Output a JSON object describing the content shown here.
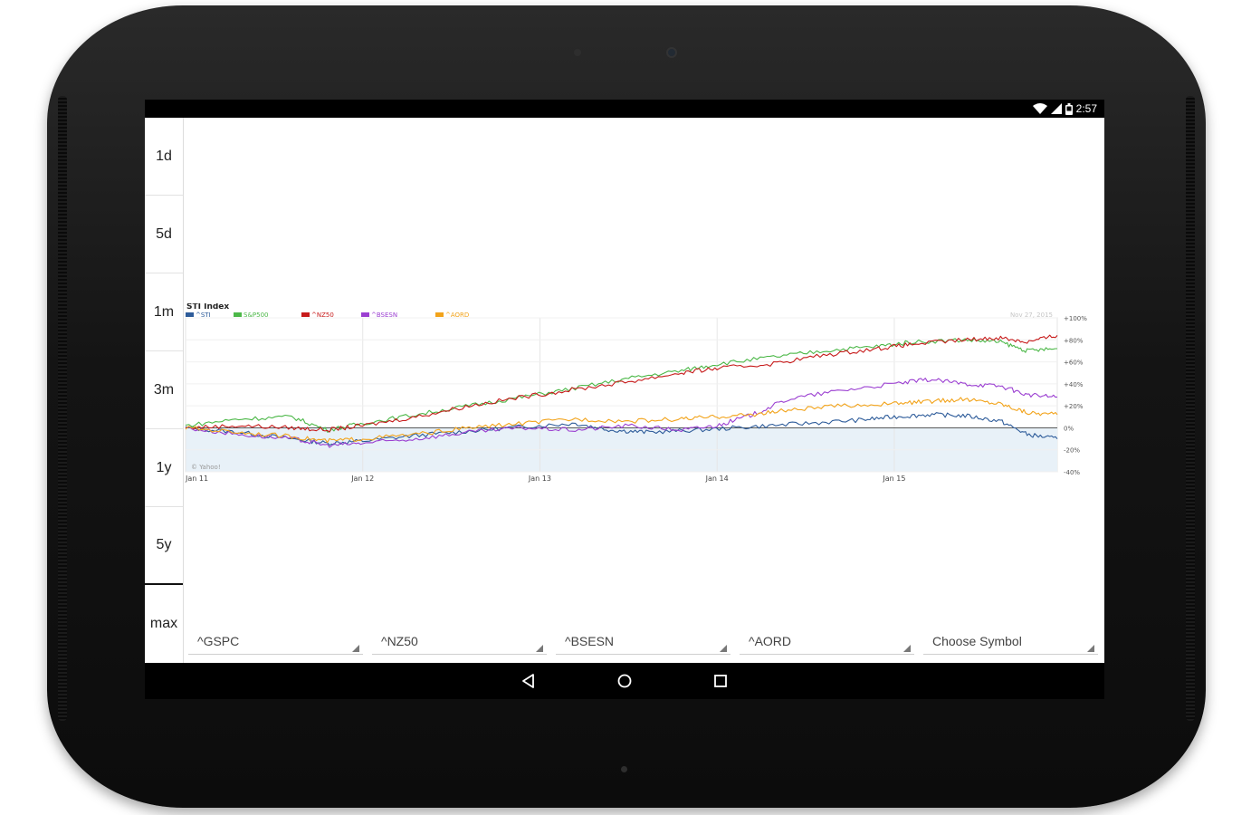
{
  "status": {
    "time": "2:57",
    "wifi_icon": "wifi-icon",
    "signal_icon": "signal-icon",
    "battery_icon": "battery-icon"
  },
  "ranges": [
    {
      "label": "1d",
      "selected": false
    },
    {
      "label": "5d",
      "selected": false
    },
    {
      "label": "1m",
      "selected": false
    },
    {
      "label": "3m",
      "selected": false
    },
    {
      "label": "1y",
      "selected": false
    },
    {
      "label": "5y",
      "selected": true
    },
    {
      "label": "max",
      "selected": false
    }
  ],
  "symbols": [
    {
      "value": "^GSPC"
    },
    {
      "value": "^NZ50"
    },
    {
      "value": "^BSESN"
    },
    {
      "value": "^AORD"
    },
    {
      "value": "Choose Symbol"
    }
  ],
  "chart_data": {
    "type": "line",
    "title": "STI Index",
    "date": "Nov 27, 2015",
    "watermark": "© Yahoo!",
    "xlabels": [
      "Jan 11",
      "Jan 12",
      "Jan 13",
      "Jan 14",
      "Jan 15"
    ],
    "xlim": [
      2011.0,
      2015.92
    ],
    "ylim": [
      -40,
      100
    ],
    "yticks": [
      "+100%",
      "+80%",
      "+60%",
      "+40%",
      "+20%",
      "0%",
      "-20%",
      "-40%"
    ],
    "ytick_values": [
      100,
      80,
      60,
      40,
      20,
      0,
      -20,
      -40
    ],
    "legend": "top-left",
    "series": [
      {
        "name": "^STI",
        "color": "#2e5c9a",
        "x": [
          2011.0,
          2011.3,
          2011.6,
          2011.8,
          2012.0,
          2012.3,
          2012.6,
          2012.9,
          2013.2,
          2013.4,
          2013.6,
          2013.9,
          2014.2,
          2014.5,
          2014.8,
          2015.0,
          2015.2,
          2015.4,
          2015.6,
          2015.75,
          2015.92
        ],
        "y": [
          0,
          -4,
          -10,
          -14,
          -12,
          -7,
          -3,
          1,
          4,
          -2,
          -4,
          -2,
          1,
          4,
          7,
          10,
          12,
          11,
          6,
          -6,
          -10
        ]
      },
      {
        "name": "S&P500",
        "color": "#4cb848",
        "x": [
          2011.0,
          2011.3,
          2011.6,
          2011.8,
          2012.0,
          2012.3,
          2012.6,
          2012.9,
          2013.2,
          2013.5,
          2013.8,
          2014.0,
          2014.3,
          2014.6,
          2014.9,
          2015.1,
          2015.4,
          2015.6,
          2015.75,
          2015.92
        ],
        "y": [
          2,
          8,
          10,
          -2,
          4,
          12,
          20,
          28,
          36,
          45,
          52,
          58,
          64,
          70,
          74,
          78,
          80,
          78,
          70,
          72
        ]
      },
      {
        "name": "^NZ50",
        "color": "#c71b1b",
        "x": [
          2011.0,
          2011.3,
          2011.6,
          2011.8,
          2012.0,
          2012.3,
          2012.6,
          2012.9,
          2013.2,
          2013.5,
          2013.8,
          2014.0,
          2014.3,
          2014.6,
          2014.9,
          2015.1,
          2015.4,
          2015.6,
          2015.75,
          2015.92
        ],
        "y": [
          0,
          2,
          0,
          -2,
          2,
          10,
          20,
          28,
          35,
          42,
          50,
          54,
          58,
          66,
          72,
          76,
          80,
          82,
          78,
          84
        ]
      },
      {
        "name": "^BSESN",
        "color": "#9b3fd1",
        "x": [
          2011.0,
          2011.3,
          2011.6,
          2011.8,
          2012.0,
          2012.3,
          2012.6,
          2012.9,
          2013.2,
          2013.5,
          2013.8,
          2014.0,
          2014.2,
          2014.4,
          2014.7,
          2015.0,
          2015.2,
          2015.4,
          2015.6,
          2015.75,
          2015.92
        ],
        "y": [
          0,
          -6,
          -10,
          -16,
          -14,
          -10,
          -4,
          0,
          -2,
          2,
          -2,
          2,
          12,
          26,
          34,
          40,
          44,
          40,
          38,
          30,
          28
        ]
      },
      {
        "name": "^AORD",
        "color": "#f2a31a",
        "x": [
          2011.0,
          2011.3,
          2011.6,
          2011.8,
          2012.0,
          2012.3,
          2012.6,
          2012.9,
          2013.2,
          2013.5,
          2013.8,
          2014.0,
          2014.2,
          2014.4,
          2014.7,
          2015.0,
          2015.2,
          2015.4,
          2015.6,
          2015.75,
          2015.92
        ],
        "y": [
          0,
          -4,
          -8,
          -12,
          -10,
          -6,
          0,
          4,
          8,
          6,
          8,
          10,
          12,
          16,
          20,
          22,
          24,
          26,
          22,
          14,
          12
        ]
      }
    ]
  },
  "nav": {
    "back_icon": "back-icon",
    "home_icon": "home-icon",
    "recents_icon": "recents-icon"
  }
}
